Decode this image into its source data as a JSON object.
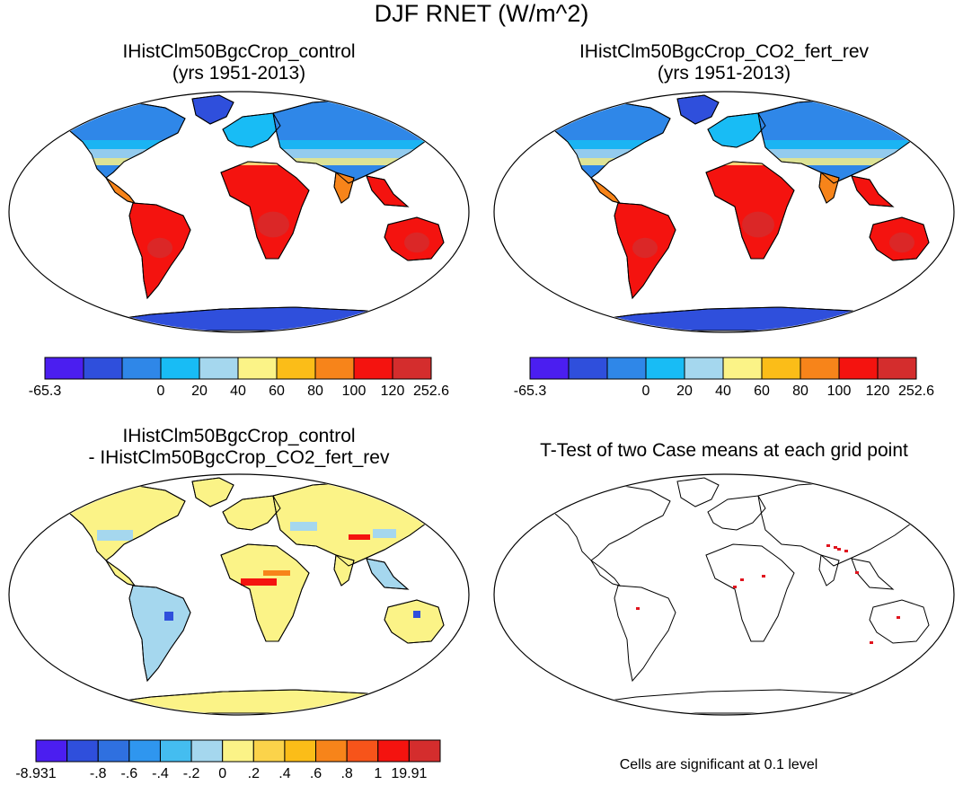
{
  "figure": {
    "title": "DJF RNET (W/m^2)"
  },
  "panels": [
    {
      "id": "control",
      "title_line1": "IHistClm50BgcCrop_control",
      "title_line2": "(yrs 1951-2013)",
      "kind": "absolute",
      "colorbar": "abs"
    },
    {
      "id": "co2",
      "title_line1": "IHistClm50BgcCrop_CO2_fert_rev",
      "title_line2": "(yrs 1951-2013)",
      "kind": "absolute",
      "colorbar": "abs"
    },
    {
      "id": "diff",
      "title_line1": "IHistClm50BgcCrop_control",
      "title_line2": "- IHistClm50BgcCrop_CO2_fert_rev",
      "kind": "difference",
      "colorbar": "diff"
    },
    {
      "id": "ttest",
      "title_line1": "T-Test of two Case means at each grid point",
      "title_line2": "",
      "kind": "significance",
      "note": "Cells are significant at 0.1 level"
    }
  ],
  "colorbars": {
    "abs": {
      "colors": [
        "#4b1ef0",
        "#2f4fdc",
        "#2f87e8",
        "#18bcf5",
        "#a5d7ee",
        "#fbf387",
        "#fbbd18",
        "#f7841a",
        "#f4130f",
        "#d42d2d"
      ],
      "labels": [
        "-65.3",
        "0",
        "20",
        "40",
        "60",
        "80",
        "100",
        "120",
        "252.6"
      ],
      "label_boundaries": [
        0,
        3,
        4,
        5,
        6,
        7,
        8,
        9,
        10
      ]
    },
    "diff": {
      "colors": [
        "#4b1ef0",
        "#2f4fdc",
        "#2f70e0",
        "#2f96ef",
        "#44bdf0",
        "#a5d7ee",
        "#fbf387",
        "#fbd34a",
        "#fbbd18",
        "#f7841a",
        "#f7541a",
        "#f4130f",
        "#d42d2d"
      ],
      "labels": [
        "-8.931",
        "-.8",
        "-.6",
        "-.4",
        "-.2",
        "0",
        ".2",
        ".4",
        ".6",
        ".8",
        "1",
        "19.91"
      ],
      "label_boundaries": [
        0,
        2,
        3,
        4,
        5,
        6,
        7,
        8,
        9,
        10,
        11,
        12
      ]
    }
  },
  "map_colors": {
    "ocean": "#ffffff",
    "coast": "#000000",
    "abs_regions": {
      "polar": "#2f4fdc",
      "boreal": "#2f87e8",
      "temperate": "#18bcf5",
      "mid": "#a5d7ee",
      "warm": "#fbf387",
      "subtrop": "#f7841a",
      "tropic": "#f4130f",
      "hot": "#d42d2d"
    },
    "diff_regions": {
      "base": "#fbf387",
      "neg": "#a5d7ee",
      "pos": "#f7841a",
      "strongpos": "#f4130f",
      "strongneg": "#2f4fdc"
    },
    "sig": "#e0141e"
  }
}
